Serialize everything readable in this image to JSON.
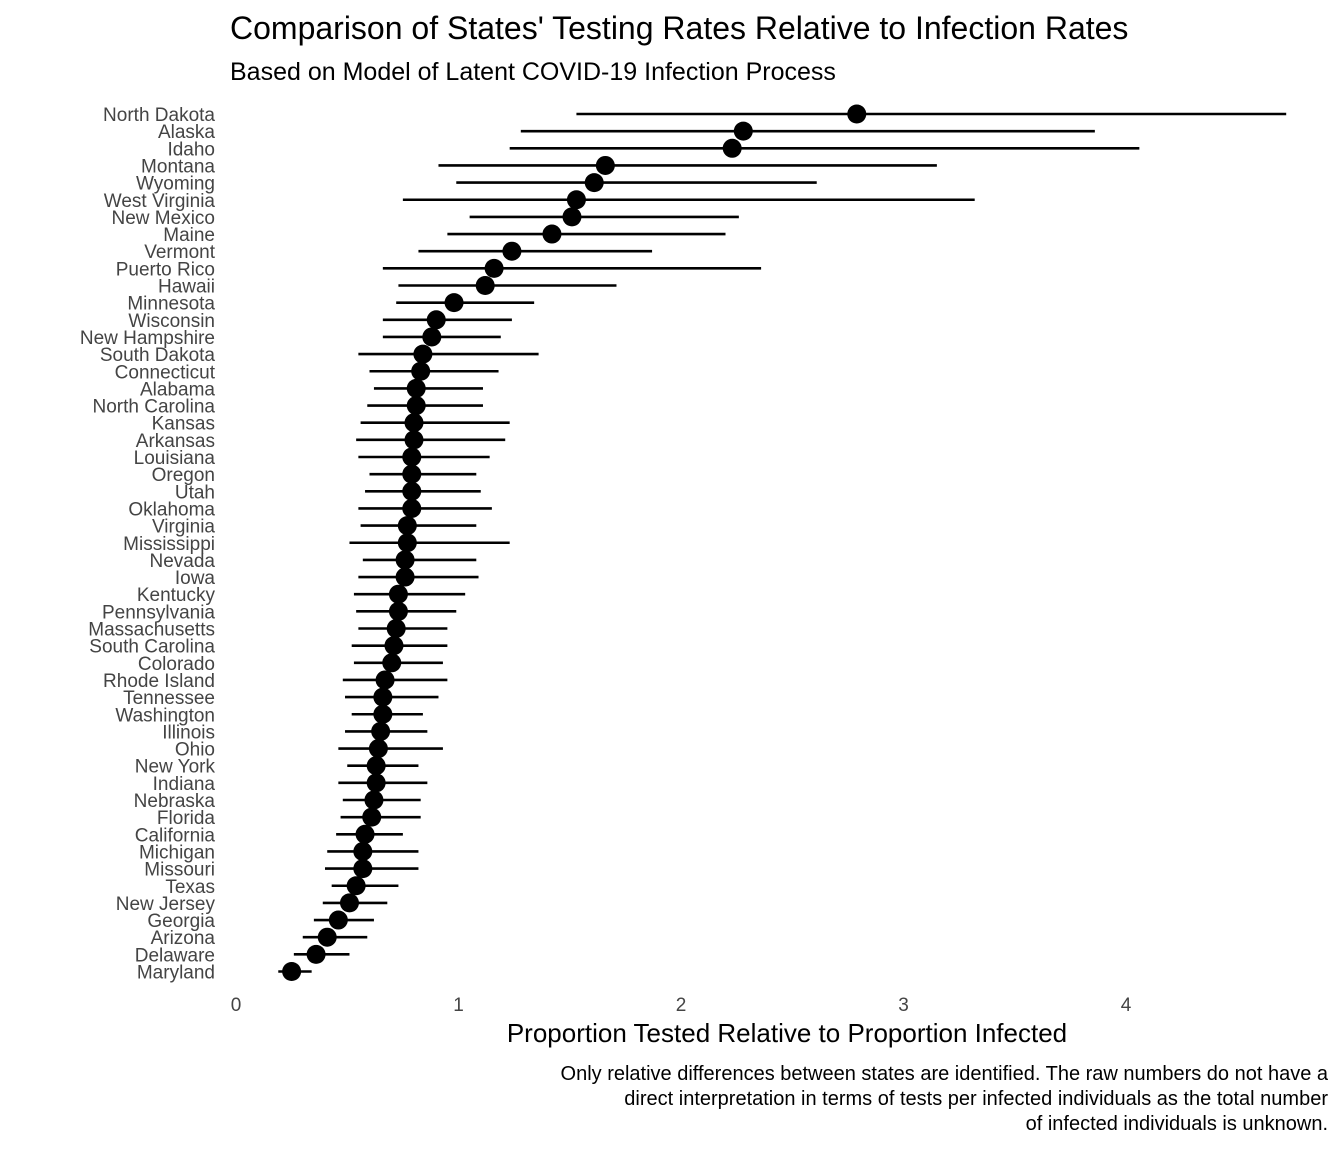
{
  "chart_data": {
    "type": "scatter",
    "title": "Comparison of States' Testing Rates Relative to Infection Rates",
    "subtitle": "Based on Model of Latent COVID-19 Infection Process",
    "xlabel": "Proportion Tested Relative to Proportion Infected",
    "ylabel": "",
    "caption": [
      "Only relative differences between states are identified. The raw numbers do not have a",
      "direct interpretation in terms of tests per infected individuals as the total number",
      "of infected individuals is unknown."
    ],
    "xlim": [
      0,
      4.8
    ],
    "xticks": [
      0,
      1,
      2,
      3,
      4
    ],
    "grid": false,
    "states": [
      {
        "name": "North Dakota",
        "est": 2.79,
        "lo": 1.53,
        "hi": 4.72
      },
      {
        "name": "Alaska",
        "est": 2.28,
        "lo": 1.28,
        "hi": 3.86
      },
      {
        "name": "Idaho",
        "est": 2.23,
        "lo": 1.23,
        "hi": 4.06
      },
      {
        "name": "Montana",
        "est": 1.66,
        "lo": 0.91,
        "hi": 3.15
      },
      {
        "name": "Wyoming",
        "est": 1.61,
        "lo": 0.99,
        "hi": 2.61
      },
      {
        "name": "West Virginia",
        "est": 1.53,
        "lo": 0.75,
        "hi": 3.32
      },
      {
        "name": "New Mexico",
        "est": 1.51,
        "lo": 1.05,
        "hi": 2.26
      },
      {
        "name": "Maine",
        "est": 1.42,
        "lo": 0.95,
        "hi": 2.2
      },
      {
        "name": "Vermont",
        "est": 1.24,
        "lo": 0.82,
        "hi": 1.87
      },
      {
        "name": "Puerto Rico",
        "est": 1.16,
        "lo": 0.66,
        "hi": 2.36
      },
      {
        "name": "Hawaii",
        "est": 1.12,
        "lo": 0.73,
        "hi": 1.71
      },
      {
        "name": "Minnesota",
        "est": 0.98,
        "lo": 0.72,
        "hi": 1.34
      },
      {
        "name": "Wisconsin",
        "est": 0.9,
        "lo": 0.66,
        "hi": 1.24
      },
      {
        "name": "New Hampshire",
        "est": 0.88,
        "lo": 0.66,
        "hi": 1.19
      },
      {
        "name": "South Dakota",
        "est": 0.84,
        "lo": 0.55,
        "hi": 1.36
      },
      {
        "name": "Connecticut",
        "est": 0.83,
        "lo": 0.6,
        "hi": 1.18
      },
      {
        "name": "Alabama",
        "est": 0.81,
        "lo": 0.62,
        "hi": 1.11
      },
      {
        "name": "North Carolina",
        "est": 0.81,
        "lo": 0.59,
        "hi": 1.11
      },
      {
        "name": "Kansas",
        "est": 0.8,
        "lo": 0.56,
        "hi": 1.23
      },
      {
        "name": "Arkansas",
        "est": 0.8,
        "lo": 0.54,
        "hi": 1.21
      },
      {
        "name": "Louisiana",
        "est": 0.79,
        "lo": 0.55,
        "hi": 1.14
      },
      {
        "name": "Oregon",
        "est": 0.79,
        "lo": 0.6,
        "hi": 1.08
      },
      {
        "name": "Utah",
        "est": 0.79,
        "lo": 0.58,
        "hi": 1.1
      },
      {
        "name": "Oklahoma",
        "est": 0.79,
        "lo": 0.55,
        "hi": 1.15
      },
      {
        "name": "Virginia",
        "est": 0.77,
        "lo": 0.56,
        "hi": 1.08
      },
      {
        "name": "Mississippi",
        "est": 0.77,
        "lo": 0.51,
        "hi": 1.23
      },
      {
        "name": "Nevada",
        "est": 0.76,
        "lo": 0.57,
        "hi": 1.08
      },
      {
        "name": "Iowa",
        "est": 0.76,
        "lo": 0.55,
        "hi": 1.09
      },
      {
        "name": "Kentucky",
        "est": 0.73,
        "lo": 0.53,
        "hi": 1.03
      },
      {
        "name": "Pennsylvania",
        "est": 0.73,
        "lo": 0.54,
        "hi": 0.99
      },
      {
        "name": "Massachusetts",
        "est": 0.72,
        "lo": 0.55,
        "hi": 0.95
      },
      {
        "name": "South Carolina",
        "est": 0.71,
        "lo": 0.52,
        "hi": 0.95
      },
      {
        "name": "Colorado",
        "est": 0.7,
        "lo": 0.53,
        "hi": 0.93
      },
      {
        "name": "Rhode Island",
        "est": 0.67,
        "lo": 0.48,
        "hi": 0.95
      },
      {
        "name": "Tennessee",
        "est": 0.66,
        "lo": 0.49,
        "hi": 0.91
      },
      {
        "name": "Washington",
        "est": 0.66,
        "lo": 0.52,
        "hi": 0.84
      },
      {
        "name": "Illinois",
        "est": 0.65,
        "lo": 0.49,
        "hi": 0.86
      },
      {
        "name": "Ohio",
        "est": 0.64,
        "lo": 0.46,
        "hi": 0.93
      },
      {
        "name": "New York",
        "est": 0.63,
        "lo": 0.5,
        "hi": 0.82
      },
      {
        "name": "Indiana",
        "est": 0.63,
        "lo": 0.46,
        "hi": 0.86
      },
      {
        "name": "Nebraska",
        "est": 0.62,
        "lo": 0.48,
        "hi": 0.83
      },
      {
        "name": "Florida",
        "est": 0.61,
        "lo": 0.47,
        "hi": 0.83
      },
      {
        "name": "California",
        "est": 0.58,
        "lo": 0.45,
        "hi": 0.75
      },
      {
        "name": "Michigan",
        "est": 0.57,
        "lo": 0.41,
        "hi": 0.82
      },
      {
        "name": "Missouri",
        "est": 0.57,
        "lo": 0.4,
        "hi": 0.82
      },
      {
        "name": "Texas",
        "est": 0.54,
        "lo": 0.43,
        "hi": 0.73
      },
      {
        "name": "New Jersey",
        "est": 0.51,
        "lo": 0.39,
        "hi": 0.68
      },
      {
        "name": "Georgia",
        "est": 0.46,
        "lo": 0.35,
        "hi": 0.62
      },
      {
        "name": "Arizona",
        "est": 0.41,
        "lo": 0.3,
        "hi": 0.59
      },
      {
        "name": "Delaware",
        "est": 0.36,
        "lo": 0.26,
        "hi": 0.51
      },
      {
        "name": "Maryland",
        "est": 0.25,
        "lo": 0.19,
        "hi": 0.34
      }
    ]
  }
}
